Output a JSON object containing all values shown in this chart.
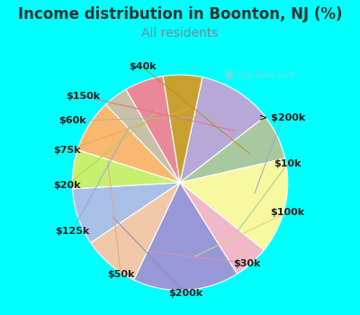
{
  "title": "Income distribution in Boonton, NJ (%)",
  "subtitle": "All residents",
  "title_color": "#333333",
  "subtitle_color": "#778899",
  "background_color": "#00FFFF",
  "watermark": "City-Data.com",
  "slices": [
    {
      "label": "> $200k",
      "value": 10.5,
      "color": "#b8a8d8"
    },
    {
      "label": "$10k",
      "value": 6.5,
      "color": "#a8c8a0"
    },
    {
      "label": "$100k",
      "value": 13.5,
      "color": "#f8f8a0"
    },
    {
      "label": "$30k",
      "value": 5.0,
      "color": "#f0b8c8"
    },
    {
      "label": "$200k",
      "value": 15.0,
      "color": "#9898d8"
    },
    {
      "label": "$50k",
      "value": 8.0,
      "color": "#f0c8a8"
    },
    {
      "label": "$125k",
      "value": 8.0,
      "color": "#a8c0e8"
    },
    {
      "label": "$20k",
      "value": 5.5,
      "color": "#c8f070"
    },
    {
      "label": "$75k",
      "value": 7.5,
      "color": "#f8b870"
    },
    {
      "label": "$60k",
      "value": 3.5,
      "color": "#c8c0a8"
    },
    {
      "label": "$150k",
      "value": 5.5,
      "color": "#e88898"
    },
    {
      "label": "$40k",
      "value": 5.5,
      "color": "#c8a030"
    }
  ],
  "line_colors": {
    "> $200k": "#a0a0cc",
    "$10k": "#a0c890",
    "$100k": "#d8d870",
    "$30k": "#e090a0",
    "$200k": "#8888c0",
    "$50k": "#e0a880",
    "$125k": "#90a8d8",
    "$20k": "#a8d850",
    "$75k": "#e8a850",
    "$60k": "#b8b098",
    "$150k": "#e07080",
    "$40k": "#b89020"
  },
  "label_fontsize": 8,
  "title_fontsize": 12,
  "subtitle_fontsize": 10
}
